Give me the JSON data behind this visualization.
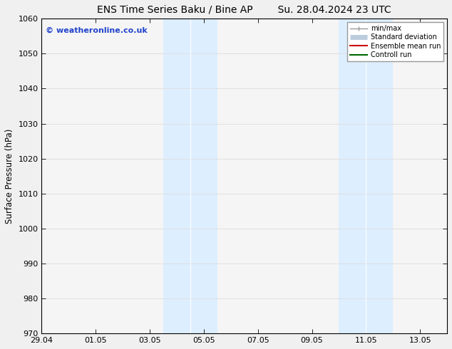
{
  "title_left": "ENS Time Series Baku / Bine AP",
  "title_right": "Su. 28.04.2024 23 UTC",
  "ylabel": "Surface Pressure (hPa)",
  "xlabel_ticks": [
    "29.04",
    "01.05",
    "03.05",
    "05.05",
    "07.05",
    "09.05",
    "11.05",
    "13.05"
  ],
  "ylim": [
    970,
    1060
  ],
  "yticks": [
    970,
    980,
    990,
    1000,
    1010,
    1020,
    1030,
    1040,
    1050,
    1060
  ],
  "xlim": [
    0,
    15.0
  ],
  "xtick_positions": [
    0.0,
    2.0,
    4.0,
    6.0,
    8.0,
    10.0,
    12.0,
    14.0
  ],
  "shade_regions": [
    {
      "x_start": 4.5,
      "x_end": 5.5
    },
    {
      "x_start": 5.5,
      "x_end": 6.5
    },
    {
      "x_start": 11.0,
      "x_end": 12.0
    },
    {
      "x_start": 12.0,
      "x_end": 13.0
    }
  ],
  "shade_color": "#ddeeff",
  "watermark_text": "© weatheronline.co.uk",
  "watermark_color": "#2244cc",
  "legend_entries": [
    {
      "label": "min/max",
      "color": "#999999",
      "lw": 1.0,
      "style": "line_with_tick"
    },
    {
      "label": "Standard deviation",
      "color": "#bbccdd",
      "lw": 5,
      "style": "thick"
    },
    {
      "label": "Ensemble mean run",
      "color": "#cc0000",
      "lw": 1.5,
      "style": "line"
    },
    {
      "label": "Controll run",
      "color": "#006600",
      "lw": 1.5,
      "style": "line"
    }
  ],
  "bg_color": "#f0f0f0",
  "plot_bg_color": "#f5f5f5",
  "grid_color": "#dddddd",
  "tick_label_fontsize": 8,
  "title_fontsize": 10,
  "ylabel_fontsize": 8.5,
  "watermark_fontsize": 8
}
